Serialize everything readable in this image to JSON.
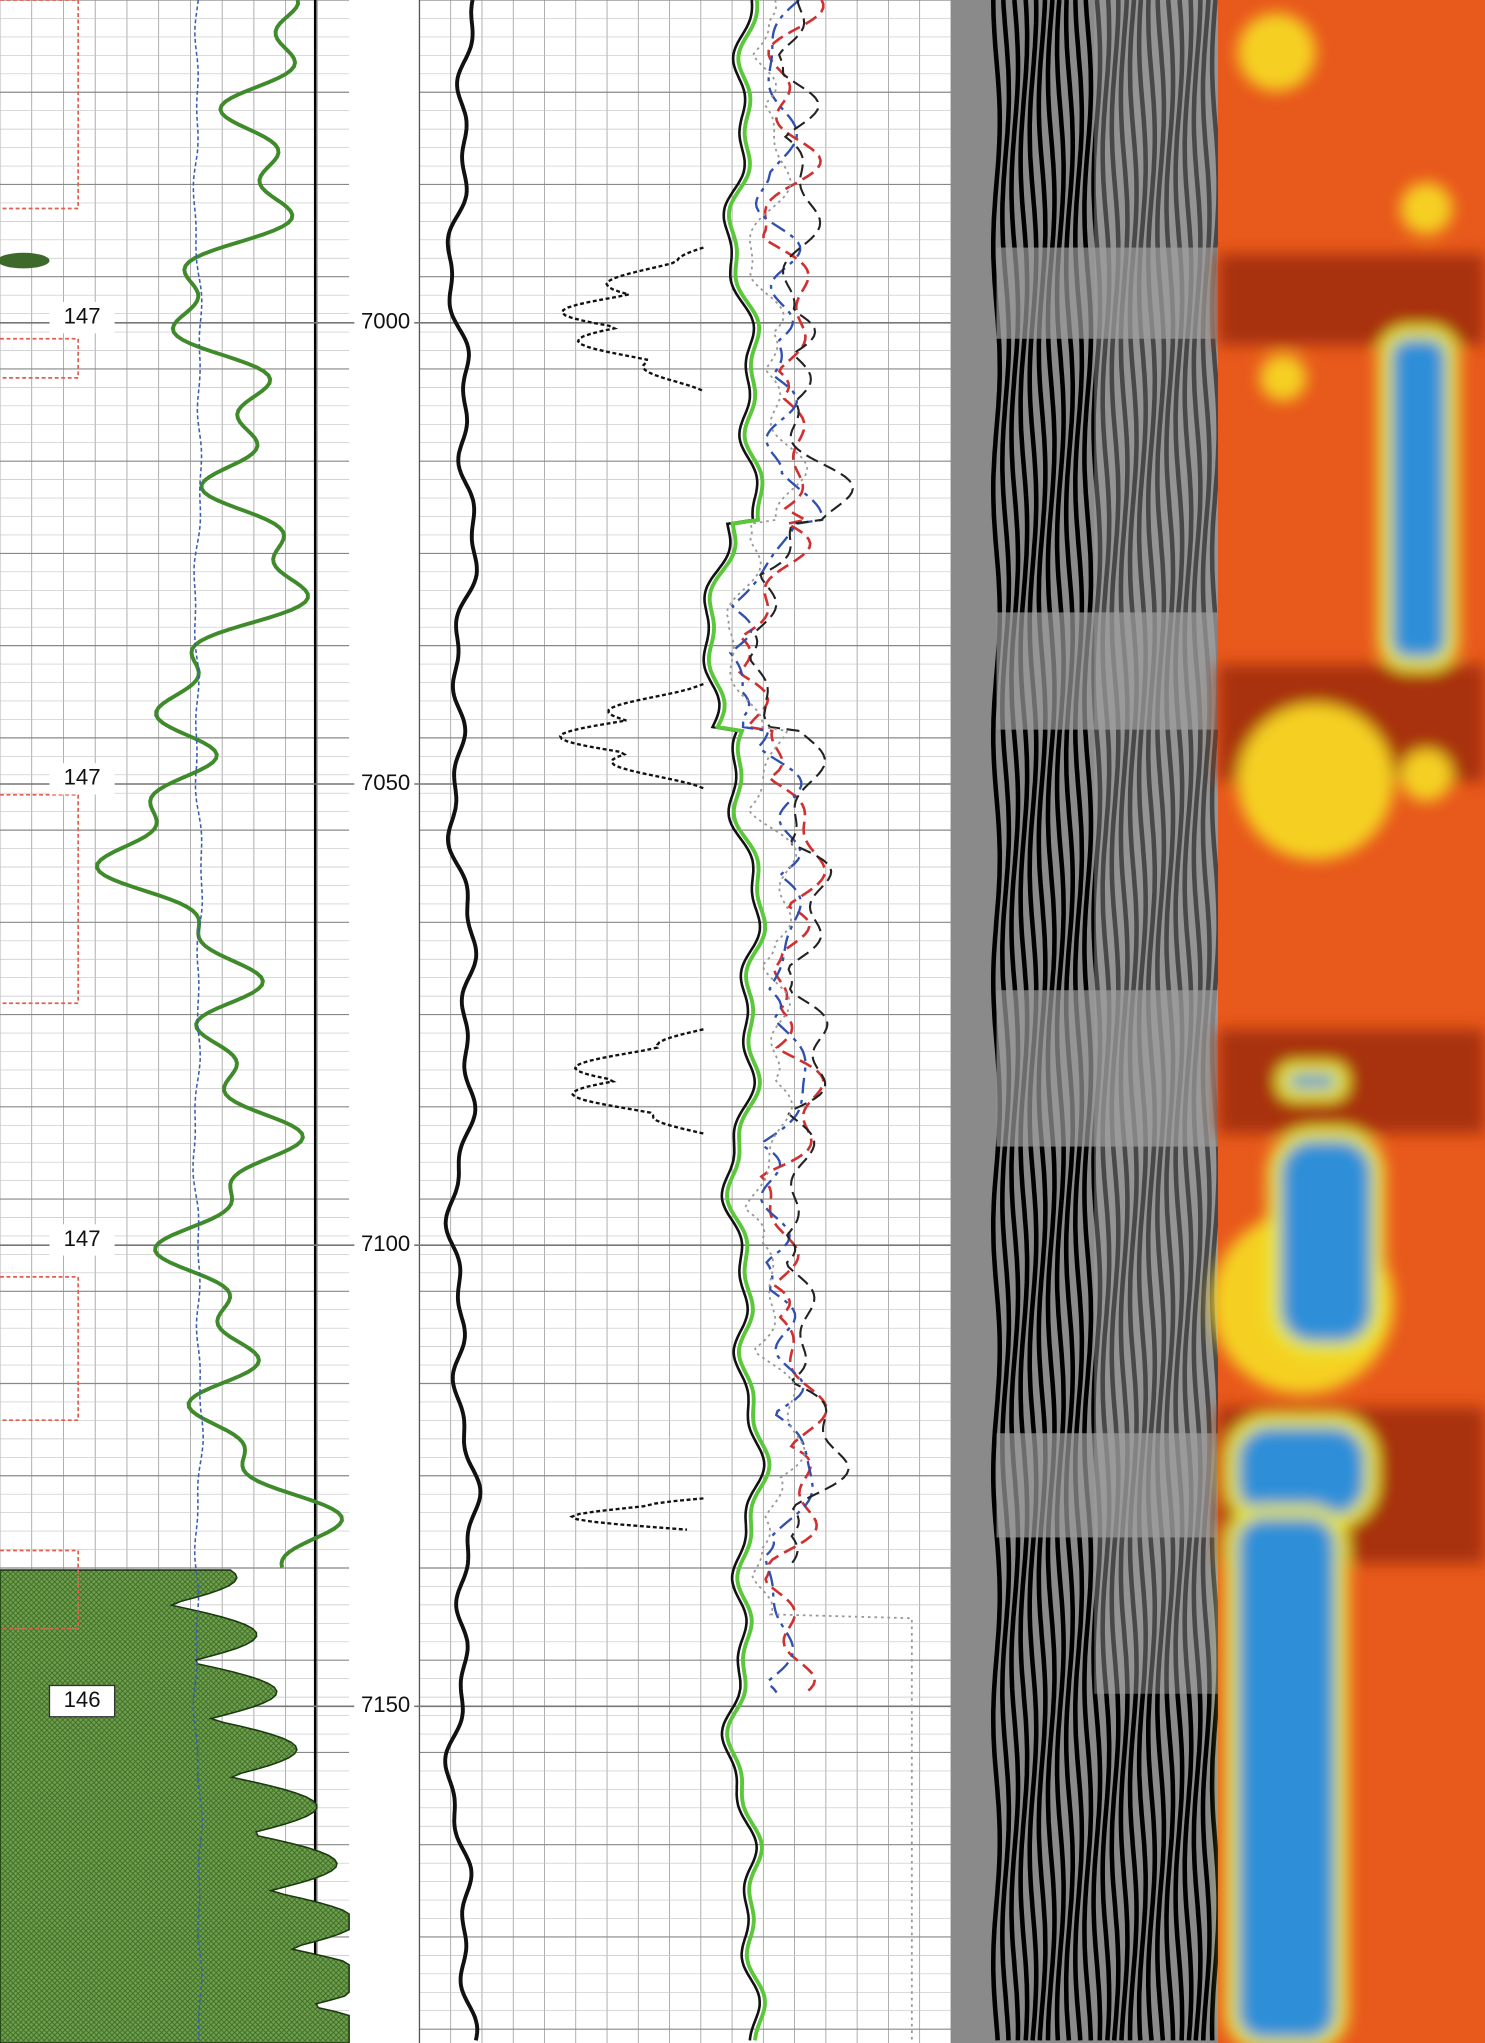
{
  "depth_track": {
    "ylim": [
      6965,
      7186.5
    ],
    "ticks": [
      7000,
      7050,
      7100,
      7150
    ]
  },
  "track1": {
    "labels": [
      "147",
      "147",
      "147",
      "146"
    ]
  }
}
